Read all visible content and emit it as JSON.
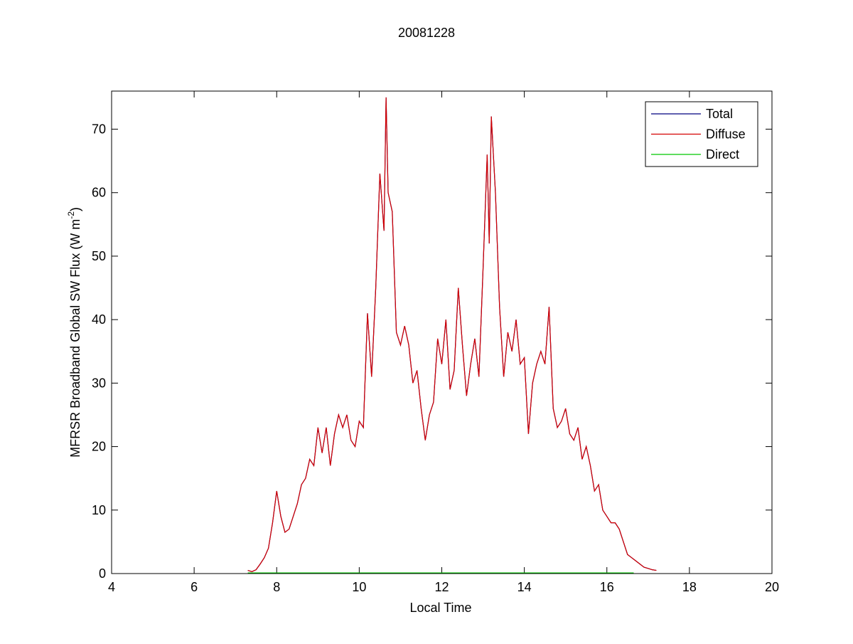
{
  "chart_data": {
    "type": "line",
    "title": "20081228",
    "x_label": "Local Time",
    "y_label": {
      "text": "MFRSR Broadband Global SW Flux (W m",
      "superscript": "-2",
      "suffix": ")"
    },
    "xlim": [
      4,
      20
    ],
    "xticks": [
      4,
      6,
      8,
      10,
      12,
      14,
      16,
      18,
      20
    ],
    "ylim": [
      0,
      76
    ],
    "yticks": [
      0,
      10,
      20,
      30,
      40,
      50,
      60,
      70
    ],
    "grid": false,
    "legend": "upper right",
    "series": [
      {
        "name": "Total",
        "color": "#00007f",
        "x": [
          7.3,
          7.4,
          7.5,
          7.6,
          7.7,
          7.8,
          7.9,
          8.0,
          8.1,
          8.2,
          8.3,
          8.4,
          8.5,
          8.6,
          8.7,
          8.8,
          8.9,
          9.0,
          9.1,
          9.2,
          9.3,
          9.4,
          9.5,
          9.6,
          9.7,
          9.8,
          9.9,
          10.0,
          10.1,
          10.2,
          10.3,
          10.4,
          10.5,
          10.6,
          10.65,
          10.7,
          10.8,
          10.9,
          11.0,
          11.1,
          11.2,
          11.3,
          11.4,
          11.5,
          11.6,
          11.7,
          11.8,
          11.9,
          12.0,
          12.1,
          12.2,
          12.3,
          12.4,
          12.5,
          12.6,
          12.7,
          12.8,
          12.9,
          13.0,
          13.1,
          13.15,
          13.2,
          13.3,
          13.4,
          13.5,
          13.6,
          13.7,
          13.8,
          13.9,
          14.0,
          14.1,
          14.2,
          14.3,
          14.4,
          14.5,
          14.6,
          14.7,
          14.8,
          14.9,
          15.0,
          15.1,
          15.2,
          15.3,
          15.4,
          15.5,
          15.6,
          15.7,
          15.8,
          15.9,
          16.0,
          16.1,
          16.2,
          16.3,
          16.4,
          16.5,
          16.6,
          16.7,
          16.8,
          16.9,
          17.0,
          17.1,
          17.2
        ],
        "values": [
          0.5,
          0.3,
          0.6,
          1.5,
          2.5,
          4,
          8,
          13,
          9,
          6.5,
          7,
          9,
          11,
          14,
          15,
          18,
          17,
          23,
          19,
          23,
          17,
          22,
          25,
          23,
          25,
          21,
          20,
          24,
          23,
          41,
          31,
          45,
          63,
          54,
          75,
          60,
          57,
          38,
          36,
          39,
          36,
          30,
          32,
          26,
          21,
          25,
          27,
          37,
          33,
          40,
          29,
          32,
          45,
          36,
          28,
          33,
          37,
          31,
          48,
          66,
          52,
          72,
          60,
          42,
          31,
          38,
          35,
          40,
          33,
          34,
          22,
          30,
          33,
          35,
          33,
          42,
          26,
          23,
          24,
          26,
          22,
          21,
          23,
          18,
          20,
          17,
          13,
          14,
          10,
          9,
          8,
          8,
          7,
          5,
          3,
          2.5,
          2,
          1.5,
          1,
          0.8,
          0.6,
          0.5
        ]
      },
      {
        "name": "Diffuse",
        "color": "#d40000",
        "x": [
          7.3,
          7.4,
          7.5,
          7.6,
          7.7,
          7.8,
          7.9,
          8.0,
          8.1,
          8.2,
          8.3,
          8.4,
          8.5,
          8.6,
          8.7,
          8.8,
          8.9,
          9.0,
          9.1,
          9.2,
          9.3,
          9.4,
          9.5,
          9.6,
          9.7,
          9.8,
          9.9,
          10.0,
          10.1,
          10.2,
          10.3,
          10.4,
          10.5,
          10.6,
          10.65,
          10.7,
          10.8,
          10.9,
          11.0,
          11.1,
          11.2,
          11.3,
          11.4,
          11.5,
          11.6,
          11.7,
          11.8,
          11.9,
          12.0,
          12.1,
          12.2,
          12.3,
          12.4,
          12.5,
          12.6,
          12.7,
          12.8,
          12.9,
          13.0,
          13.1,
          13.15,
          13.2,
          13.3,
          13.4,
          13.5,
          13.6,
          13.7,
          13.8,
          13.9,
          14.0,
          14.1,
          14.2,
          14.3,
          14.4,
          14.5,
          14.6,
          14.7,
          14.8,
          14.9,
          15.0,
          15.1,
          15.2,
          15.3,
          15.4,
          15.5,
          15.6,
          15.7,
          15.8,
          15.9,
          16.0,
          16.1,
          16.2,
          16.3,
          16.4,
          16.5,
          16.6,
          16.7,
          16.8,
          16.9,
          17.0,
          17.1,
          17.2
        ],
        "values": [
          0.5,
          0.3,
          0.6,
          1.5,
          2.5,
          4,
          8,
          13,
          9,
          6.5,
          7,
          9,
          11,
          14,
          15,
          18,
          17,
          23,
          19,
          23,
          17,
          22,
          25,
          23,
          25,
          21,
          20,
          24,
          23,
          41,
          31,
          45,
          63,
          54,
          75,
          60,
          57,
          38,
          36,
          39,
          36,
          30,
          32,
          26,
          21,
          25,
          27,
          37,
          33,
          40,
          29,
          32,
          45,
          36,
          28,
          33,
          37,
          31,
          48,
          66,
          52,
          72,
          60,
          42,
          31,
          38,
          35,
          40,
          33,
          34,
          22,
          30,
          33,
          35,
          33,
          42,
          26,
          23,
          24,
          26,
          22,
          21,
          23,
          18,
          20,
          17,
          13,
          14,
          10,
          9,
          8,
          8,
          7,
          5,
          3,
          2.5,
          2,
          1.5,
          1,
          0.8,
          0.6,
          0.5
        ]
      },
      {
        "name": "Direct",
        "color": "#00c800",
        "x": [
          7.3,
          16.65
        ],
        "values": [
          0.1,
          0.1
        ]
      }
    ]
  }
}
